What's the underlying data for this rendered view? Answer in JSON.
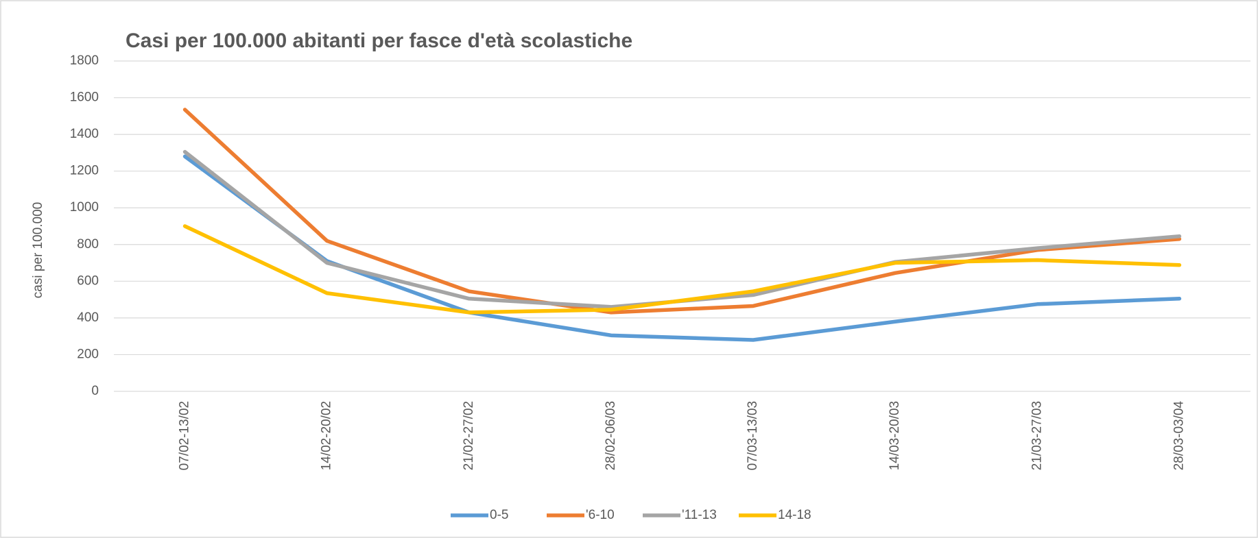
{
  "chart_data": {
    "type": "line",
    "title": "Casi per 100.000 abitanti per fasce d'età scolastiche",
    "y_label": "casi per 100.000",
    "categories": [
      "07/02-13/02",
      "14/02-20/02",
      "21/02-27/02",
      "28/02-06/03",
      "07/03-13/03",
      "14/03-20/03",
      "21/03-27/03",
      "28/03-03/04"
    ],
    "series": [
      {
        "name": "0-5",
        "color": "#5b9bd5",
        "values": [
          1280,
          710,
          430,
          305,
          280,
          380,
          475,
          505
        ]
      },
      {
        "name": "'6-10",
        "color": "#ed7d31",
        "values": [
          1535,
          820,
          545,
          430,
          465,
          645,
          770,
          830
        ]
      },
      {
        "name": "'11-13",
        "color": "#a5a5a5",
        "values": [
          1305,
          700,
          505,
          460,
          525,
          705,
          780,
          845
        ]
      },
      {
        "name": "14-18",
        "color": "#ffc000",
        "values": [
          900,
          535,
          430,
          445,
          545,
          700,
          715,
          688
        ]
      }
    ],
    "ylim": [
      0,
      1800
    ],
    "yticks": [
      0,
      200,
      400,
      600,
      800,
      1000,
      1200,
      1400,
      1600,
      1800
    ],
    "grid": true,
    "legend": "bottom"
  }
}
